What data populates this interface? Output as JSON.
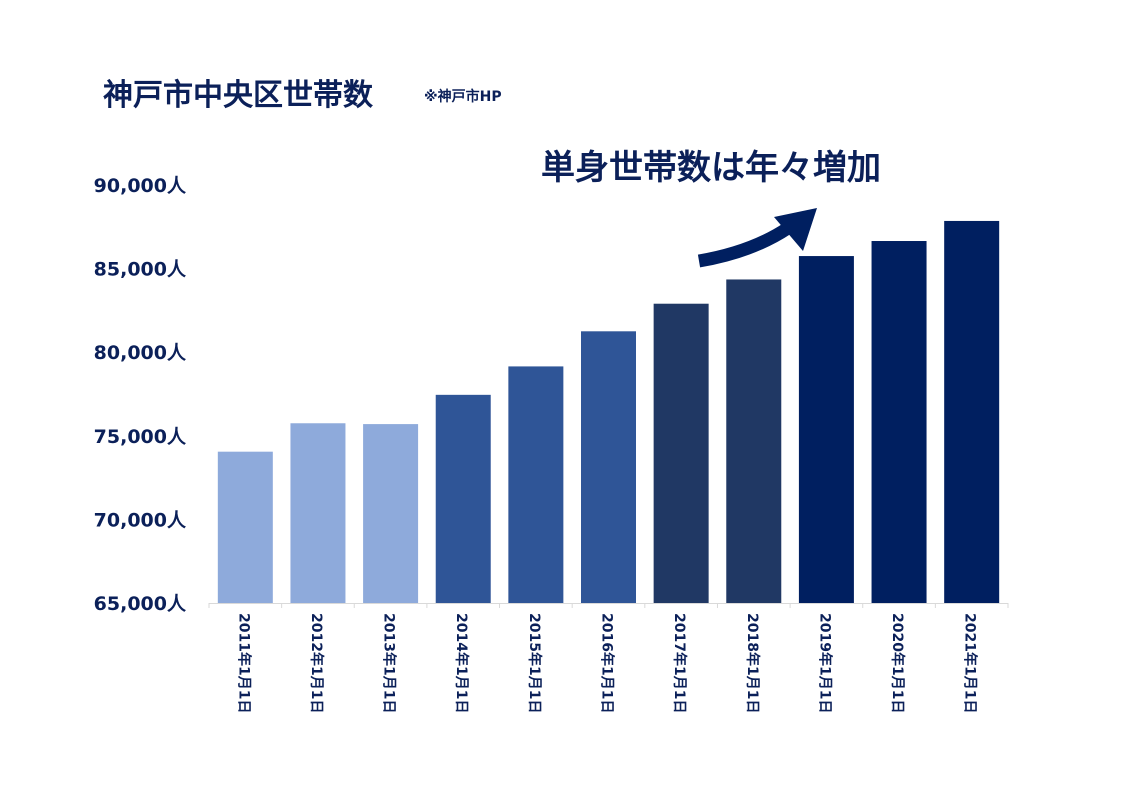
{
  "header": {
    "title": "神戸市中央区世帯数",
    "source": "※神戸市HP"
  },
  "annotation": {
    "text": "単身世帯数は年々増加"
  },
  "chart_data": {
    "type": "bar",
    "title": "神戸市中央区世帯数",
    "categories": [
      "2011年1月1日",
      "2012年1月1日",
      "2013年1月1日",
      "2014年1月1日",
      "2015年1月1日",
      "2016年1月1日",
      "2017年1月1日",
      "2018年1月1日",
      "2019年1月1日",
      "2020年1月1日",
      "2021年1月1日"
    ],
    "values": [
      74050,
      75750,
      75700,
      77450,
      79150,
      81250,
      82900,
      84350,
      85750,
      86650,
      87850
    ],
    "bar_colors": [
      "#8eaadb",
      "#8eaadb",
      "#8eaadb",
      "#2f5597",
      "#2f5597",
      "#2f5597",
      "#203864",
      "#203864",
      "#001f60",
      "#001f60",
      "#001f60"
    ],
    "ylim": [
      65000,
      90000
    ],
    "yticks": [
      65000,
      70000,
      75000,
      80000,
      85000,
      90000
    ],
    "ytick_labels": [
      "65,000人",
      "70,000人",
      "75,000人",
      "80,000人",
      "85,000人",
      "90,000人"
    ],
    "grid": false,
    "xlabel": "",
    "ylabel": "",
    "arrow_color": "#001f60",
    "text_color": "#0b2059"
  }
}
